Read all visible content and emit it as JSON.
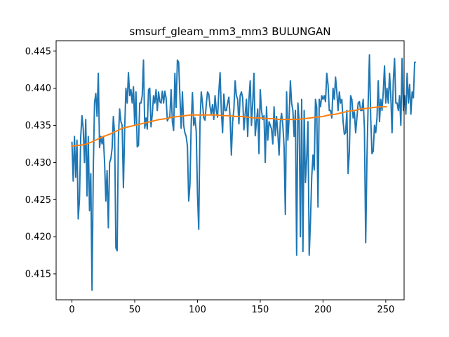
{
  "chart_data": {
    "type": "line",
    "title": "smsurf_gleam_mm3_mm3 BULUNGAN",
    "xlabel": "",
    "ylabel": "",
    "xlim": [
      -12.6,
      264.6
    ],
    "ylim": [
      0.4115,
      0.4464
    ],
    "x_ticks": [
      0,
      50,
      100,
      150,
      200,
      250
    ],
    "x_tick_labels": [
      "0",
      "50",
      "100",
      "150",
      "200",
      "250"
    ],
    "y_ticks": [
      0.415,
      0.42,
      0.425,
      0.43,
      0.435,
      0.44,
      0.445
    ],
    "y_tick_labels": [
      "0.415",
      "0.420",
      "0.425",
      "0.430",
      "0.435",
      "0.440",
      "0.445"
    ],
    "grid": false,
    "legend": "none",
    "series": [
      {
        "color": "#1f77b4",
        "values": [
          0.4328,
          0.4275,
          0.4335,
          0.428,
          0.433,
          0.4224,
          0.425,
          0.4335,
          0.4363,
          0.4345,
          0.43,
          0.4358,
          0.4255,
          0.4335,
          0.4235,
          0.4285,
          0.4128,
          0.429,
          0.438,
          0.4393,
          0.4362,
          0.442,
          0.432,
          0.4335,
          0.4325,
          0.4335,
          0.43,
          0.4248,
          0.4289,
          0.4212,
          0.43,
          0.4305,
          0.4319,
          0.4362,
          0.4338,
          0.4185,
          0.4181,
          0.4332,
          0.4372,
          0.4355,
          0.435,
          0.4266,
          0.4345,
          0.44,
          0.438,
          0.4421,
          0.439,
          0.4398,
          0.438,
          0.4402,
          0.435,
          0.4395,
          0.4321,
          0.4323,
          0.438,
          0.438,
          0.439,
          0.4438,
          0.4346,
          0.436,
          0.4345,
          0.4398,
          0.44,
          0.4348,
          0.4365,
          0.439,
          0.438,
          0.4398,
          0.437,
          0.4395,
          0.4382,
          0.438,
          0.4396,
          0.438,
          0.4396,
          0.4387,
          0.4356,
          0.436,
          0.4362,
          0.4398,
          0.4355,
          0.4343,
          0.442,
          0.4374,
          0.4438,
          0.4435,
          0.439,
          0.4346,
          0.4395,
          0.435,
          0.434,
          0.4335,
          0.4322,
          0.4248,
          0.427,
          0.4352,
          0.4394,
          0.435,
          0.436,
          0.4342,
          0.4258,
          0.421,
          0.4353,
          0.4395,
          0.438,
          0.436,
          0.4357,
          0.4378,
          0.4395,
          0.4392,
          0.4375,
          0.4365,
          0.4378,
          0.4358,
          0.439,
          0.437,
          0.4361,
          0.4395,
          0.4421,
          0.437,
          0.434,
          0.4392,
          0.437,
          0.437,
          0.438,
          0.4388,
          0.436,
          0.431,
          0.4355,
          0.4372,
          0.441,
          0.439,
          0.4385,
          0.4352,
          0.439,
          0.4395,
          0.4387,
          0.4344,
          0.4365,
          0.4385,
          0.4335,
          0.4385,
          0.441,
          0.435,
          0.438,
          0.442,
          0.4336,
          0.4355,
          0.4372,
          0.4312,
          0.4398,
          0.437,
          0.4358,
          0.4363,
          0.43,
          0.4375,
          0.433,
          0.4355,
          0.435,
          0.4345,
          0.4325,
          0.4375,
          0.4336,
          0.4362,
          0.434,
          0.431,
          0.4355,
          0.4366,
          0.435,
          0.4321,
          0.423,
          0.4395,
          0.433,
          0.436,
          0.441,
          0.438,
          0.437,
          0.4335,
          0.437,
          0.4175,
          0.438,
          0.4355,
          0.42,
          0.4385,
          0.418,
          0.437,
          0.4273,
          0.4305,
          0.4355,
          0.4175,
          0.422,
          0.428,
          0.431,
          0.429,
          0.4385,
          0.4374,
          0.424,
          0.4385,
          0.4375,
          0.439,
          0.4385,
          0.439,
          0.4382,
          0.442,
          0.4405,
          0.437,
          0.437,
          0.436,
          0.44,
          0.4385,
          0.4415,
          0.4395,
          0.437,
          0.4395,
          0.438,
          0.4385,
          0.4355,
          0.4338,
          0.434,
          0.437,
          0.4285,
          0.4315,
          0.439,
          0.4385,
          0.436,
          0.4368,
          0.434,
          0.436,
          0.438,
          0.4382,
          0.437,
          0.437,
          0.4385,
          0.4345,
          0.4192,
          0.4305,
          0.4382,
          0.4445,
          0.436,
          0.4312,
          0.4315,
          0.435,
          0.434,
          0.436,
          0.441,
          0.4355,
          0.4385,
          0.437,
          0.4395,
          0.443,
          0.438,
          0.44,
          0.438,
          0.442,
          0.439,
          0.434,
          0.441,
          0.444,
          0.438,
          0.438,
          0.437,
          0.439,
          0.435,
          0.444,
          0.437,
          0.439,
          0.4365,
          0.442,
          0.438,
          0.4405,
          0.4365,
          0.4395,
          0.4387,
          0.4435,
          0.4435
        ]
      },
      {
        "color": "#ff7f0e",
        "points": [
          [
            0,
            0.4322
          ],
          [
            5,
            0.4323
          ],
          [
            10,
            0.4324
          ],
          [
            15,
            0.4327
          ],
          [
            20,
            0.4331
          ],
          [
            25,
            0.4335
          ],
          [
            30,
            0.4338
          ],
          [
            35,
            0.4342
          ],
          [
            40,
            0.4346
          ],
          [
            45,
            0.4348
          ],
          [
            50,
            0.435
          ],
          [
            55,
            0.4352
          ],
          [
            60,
            0.4354
          ],
          [
            65,
            0.4356
          ],
          [
            70,
            0.4358
          ],
          [
            75,
            0.4359
          ],
          [
            80,
            0.4361
          ],
          [
            85,
            0.4362
          ],
          [
            90,
            0.4363
          ],
          [
            95,
            0.4364
          ],
          [
            100,
            0.4364
          ],
          [
            105,
            0.4364
          ],
          [
            110,
            0.4364
          ],
          [
            115,
            0.4364
          ],
          [
            120,
            0.4363
          ],
          [
            125,
            0.4363
          ],
          [
            130,
            0.4362
          ],
          [
            135,
            0.4362
          ],
          [
            140,
            0.4361
          ],
          [
            145,
            0.436
          ],
          [
            150,
            0.436
          ],
          [
            155,
            0.4359
          ],
          [
            160,
            0.4359
          ],
          [
            165,
            0.4358
          ],
          [
            170,
            0.4358
          ],
          [
            175,
            0.4358
          ],
          [
            180,
            0.4358
          ],
          [
            185,
            0.4359
          ],
          [
            190,
            0.436
          ],
          [
            195,
            0.4361
          ],
          [
            200,
            0.4362
          ],
          [
            205,
            0.4364
          ],
          [
            210,
            0.4365
          ],
          [
            215,
            0.4367
          ],
          [
            220,
            0.4369
          ],
          [
            225,
            0.437
          ],
          [
            230,
            0.4372
          ],
          [
            235,
            0.4373
          ],
          [
            240,
            0.4374
          ],
          [
            245,
            0.4375
          ],
          [
            251,
            0.4375
          ]
        ]
      }
    ]
  }
}
